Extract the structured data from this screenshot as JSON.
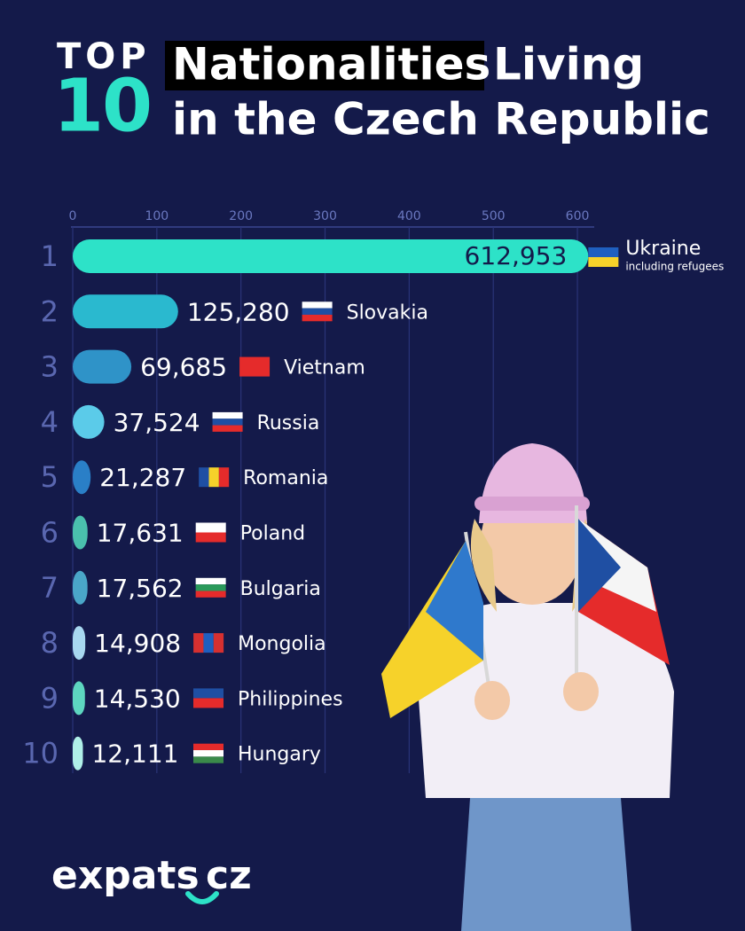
{
  "chart_data": {
    "type": "bar",
    "orientation": "horizontal",
    "title_top": "TOP",
    "title_number": "10",
    "title_highlight": "Nationalities",
    "title_line1_rest": "Living",
    "title_line2": "in the Czech Republic",
    "ranks": [
      "1",
      "2",
      "3",
      "4",
      "5",
      "6",
      "7",
      "8",
      "9",
      "10"
    ],
    "categories": [
      "Ukraine",
      "Slovakia",
      "Vietnam",
      "Russia",
      "Romania",
      "Poland",
      "Bulgaria",
      "Mongolia",
      "Philippines",
      "Hungary"
    ],
    "values": [
      612.953,
      125.28,
      69.685,
      37.524,
      21.287,
      17.631,
      17.562,
      14.908,
      14.53,
      12.111
    ],
    "value_labels": [
      "612,953",
      "125,280",
      "69,685",
      "37,524",
      "21,287",
      "17,631",
      "17,562",
      "14,908",
      "14,530",
      "12,111"
    ],
    "colors": [
      "#2de2c8",
      "#2ab9cf",
      "#2f93c8",
      "#5bcbe9",
      "#2a7fc7",
      "#4ac0ad",
      "#4aa6c8",
      "#a8d8f0",
      "#5dd6c0",
      "#b0f0e8"
    ],
    "annotation": "including refugees",
    "xlim": [
      0,
      620
    ],
    "xticks": [
      0,
      100,
      200,
      300,
      400,
      500,
      600
    ],
    "grid": true,
    "logo_main": "expats",
    "logo_suffix": "cz"
  }
}
